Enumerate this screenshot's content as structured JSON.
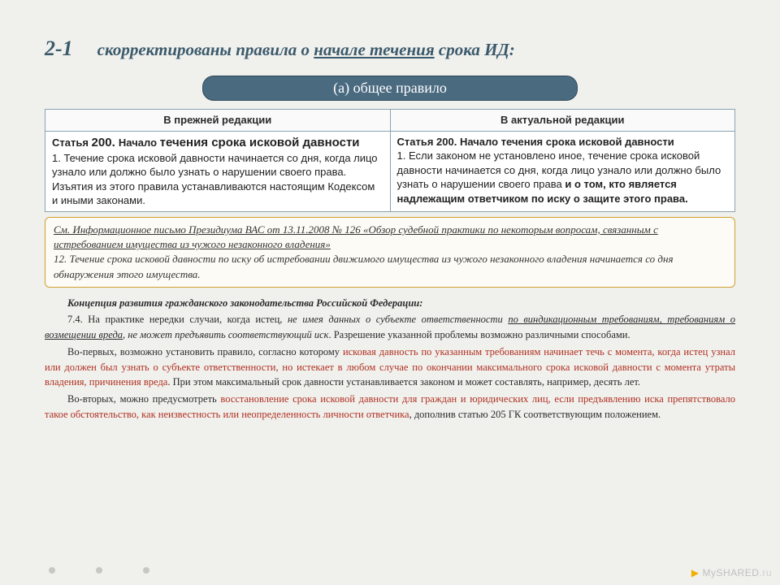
{
  "title": {
    "num": "2-1",
    "prefix": "скорректированы правила о ",
    "underlined": "начале течения",
    "suffix": " срока ИД:"
  },
  "badge": "(а) общее правило",
  "table": {
    "headers": [
      "В прежней редакции",
      "В актуальной редакции"
    ],
    "left": {
      "heading": "Статья 200. Начало течения срока исковой давности",
      "body": "1. Течение срока исковой давности начинается со дня, когда лицо узнало или должно было узнать о нарушении своего права. Изъятия из этого правила устанавливаются настоящим Кодексом и иными законами."
    },
    "right": {
      "heading": "Статья 200. Начало течения срока исковой давности",
      "body_prefix": "1. Если законом не установлено иное, течение срока исковой давности начинается со дня, когда лицо узнало или должно было узнать о нарушении своего права ",
      "body_bold": "и о том, кто является надлежащим ответчиком по иску о защите этого права."
    }
  },
  "callout": {
    "ref": "См. Информационное письмо Президиума ВАС от 13.11.2008 № 126 «Обзор судебной практики по некоторым вопросам, связанным с истребованием имущества из чужого незаконного владения»",
    "text": "12. Течение срока исковой давности по иску об истребовании движимого имущества из чужого незаконного владения начинается со дня обнаружения этого имущества."
  },
  "concept": {
    "header": "Концепция развития гражданского законодательства Российской Федерации:",
    "p1_a": "7.4. На практике нередки случаи, когда истец, ",
    "p1_b": "не имея данных о субъекте ответственности ",
    "p1_c": "по виндикационным требованиям, требованиям о возмещении вреда",
    "p1_d": ", не может предъявить соответствующий иск",
    "p1_e": ". Разрешение указанной проблемы возможно различными способами.",
    "p2_a": "Во-первых, возможно установить правило, согласно которому ",
    "p2_b": "исковая давность по указанным требованиям начинает течь с момента, когда истец узнал или должен был узнать о субъекте ответственности, но истекает в любом случае по окончании максимального срока исковой давности с момента утраты владения, причинения вреда",
    "p2_c": ". При этом максимальный срок давности устанавливается законом и может составлять, например, десять лет.",
    "p3_a": "Во-вторых, можно предусмотреть ",
    "p3_b": "восстановление срока исковой давности для граждан и юридических лиц, если предъявлению иска препятствовало такое обстоятельство, как неизвестность или неопределенность личности ответчика",
    "p3_c": ", дополнив статью 205 ГК соответствующим положением."
  },
  "watermark": "MySHARED"
}
